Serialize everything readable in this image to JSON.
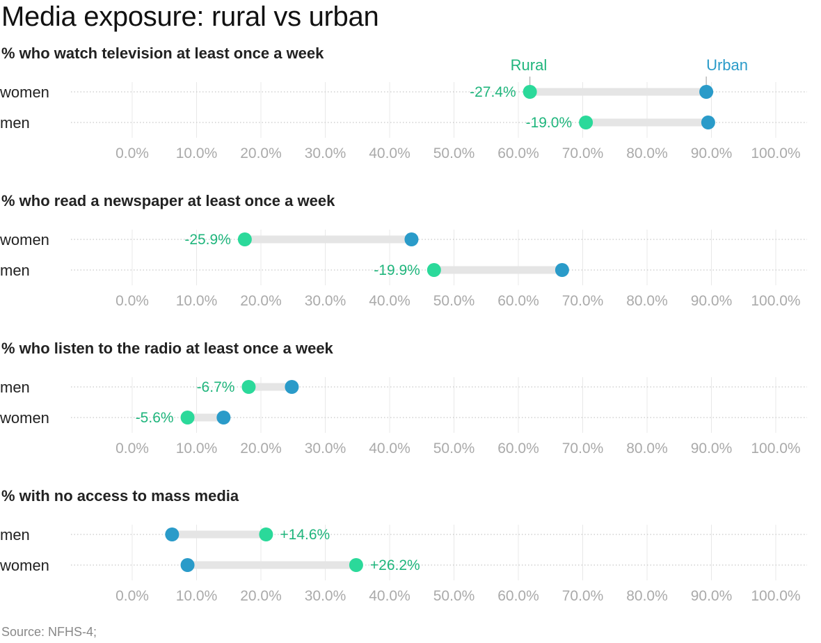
{
  "chart_data": {
    "type": "dumbbell",
    "title": "Media exposure: rural vs urban",
    "source": "Source: NFHS-4;",
    "legend": {
      "rural": "Rural",
      "urban": "Urban"
    },
    "colors": {
      "rural": "#2bd99a",
      "urban": "#2a9bc9",
      "connector": "#e5e5e5",
      "grid": "#e8e8e8",
      "tick": "#aaaaaa",
      "rural_text": "#1fb57c"
    },
    "xlim": [
      0,
      100
    ],
    "ticks": [
      0,
      10,
      20,
      30,
      40,
      50,
      60,
      70,
      80,
      90,
      100
    ],
    "tick_labels": [
      "0.0%",
      "10.0%",
      "20.0%",
      "30.0%",
      "40.0%",
      "50.0%",
      "60.0%",
      "70.0%",
      "80.0%",
      "90.0%",
      "100.0%"
    ],
    "panels": [
      {
        "title": "% who watch television at least once a week",
        "rows": [
          {
            "label": "women",
            "rural": 61.8,
            "urban": 89.2,
            "diff": "-27.4%"
          },
          {
            "label": "men",
            "rural": 70.5,
            "urban": 89.5,
            "diff": "-19.0%"
          }
        ]
      },
      {
        "title": "% who read a newspaper at least once a week",
        "rows": [
          {
            "label": "women",
            "rural": 17.5,
            "urban": 43.4,
            "diff": "-25.9%"
          },
          {
            "label": "men",
            "rural": 46.9,
            "urban": 66.8,
            "diff": "-19.9%"
          }
        ]
      },
      {
        "title": "% who listen to the radio at least once a week",
        "rows": [
          {
            "label": "men",
            "rural": 18.1,
            "urban": 24.8,
            "diff": "-6.7%"
          },
          {
            "label": "women",
            "rural": 8.6,
            "urban": 14.2,
            "diff": "-5.6%"
          }
        ]
      },
      {
        "title": "% with no access to mass media",
        "rows": [
          {
            "label": "men",
            "rural": 20.8,
            "urban": 6.2,
            "diff": "+14.6%"
          },
          {
            "label": "women",
            "rural": 34.8,
            "urban": 8.6,
            "diff": "+26.2%"
          }
        ]
      }
    ]
  }
}
